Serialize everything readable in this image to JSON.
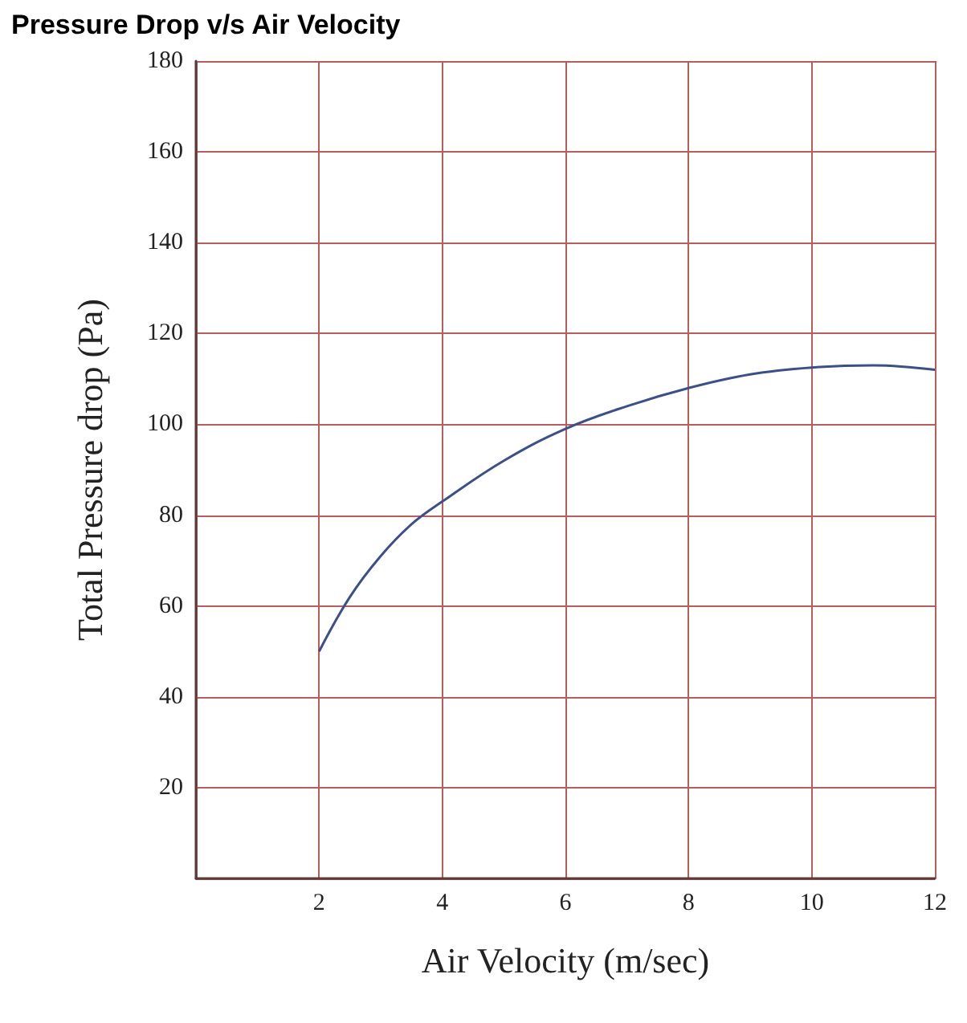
{
  "chart_data": {
    "type": "line",
    "title": "Pressure Drop v/s Air Velocity",
    "xlabel": "Air Velocity (m/sec)",
    "ylabel": "Total Pressure drop (Pa)",
    "x": [
      2,
      2.5,
      3,
      3.5,
      4,
      5,
      6,
      7,
      8,
      9,
      10,
      11,
      12
    ],
    "series": [
      {
        "color": "#3b4f8a",
        "values": [
          50,
          62,
          71,
          78,
          83,
          92,
          99,
          104,
          108,
          111,
          112.5,
          113,
          112
        ]
      }
    ],
    "xlim": [
      0,
      12
    ],
    "xticks": [
      {
        "value": 0,
        "label": null
      },
      2,
      4,
      6,
      8,
      10,
      12
    ],
    "ylim": [
      0,
      180
    ],
    "yticks": [
      {
        "value": 0,
        "label": null
      },
      20,
      40,
      60,
      80,
      100,
      120,
      140,
      160,
      180
    ],
    "grid": true,
    "marker": "none",
    "line_style": "solid"
  }
}
